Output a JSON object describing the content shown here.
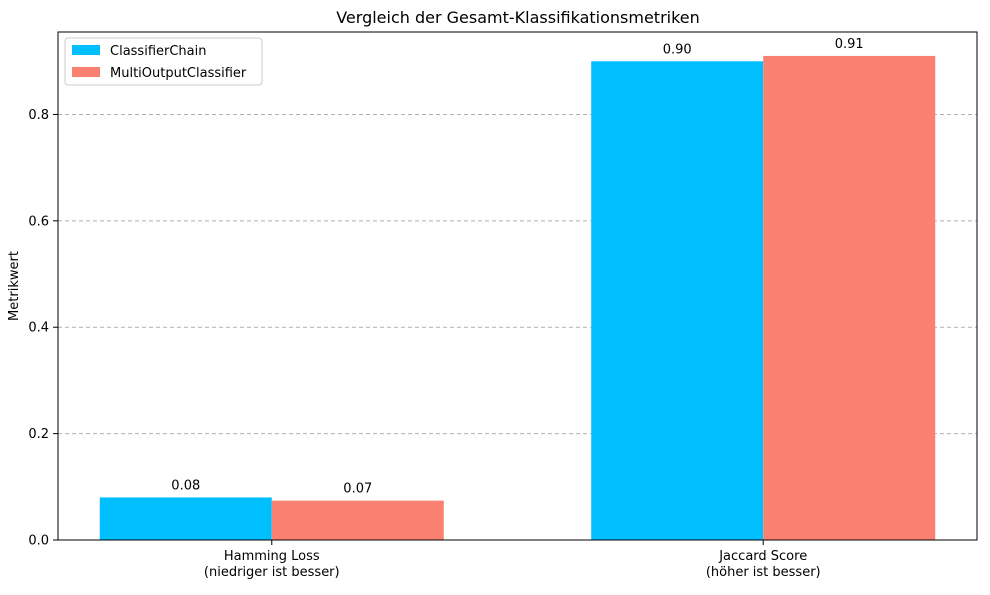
{
  "chart_data": {
    "type": "bar",
    "title": "Vergleich der Gesamt-Klassifikationsmetriken",
    "xlabel": "",
    "ylabel": "Metrikwert",
    "categories": [
      [
        "Hamming Loss",
        "(niedriger ist besser)"
      ],
      [
        "Jaccard Score",
        "(höher ist besser)"
      ]
    ],
    "series": [
      {
        "name": "ClassifierChain",
        "values": [
          0.08,
          0.9
        ],
        "labels": [
          "0.08",
          "0.90"
        ],
        "color": "#00bfff"
      },
      {
        "name": "MultiOutputClassifier",
        "values": [
          0.074,
          0.91
        ],
        "labels": [
          "0.07",
          "0.91"
        ],
        "color": "#fa8072"
      }
    ],
    "ylim": [
      0,
      0.955
    ],
    "yticks": [
      0.0,
      0.2,
      0.4,
      0.6,
      0.8
    ],
    "ytick_labels": [
      "0.0",
      "0.2",
      "0.4",
      "0.6",
      "0.8"
    ],
    "grid": "y-dashed",
    "legend_position": "top-left"
  }
}
